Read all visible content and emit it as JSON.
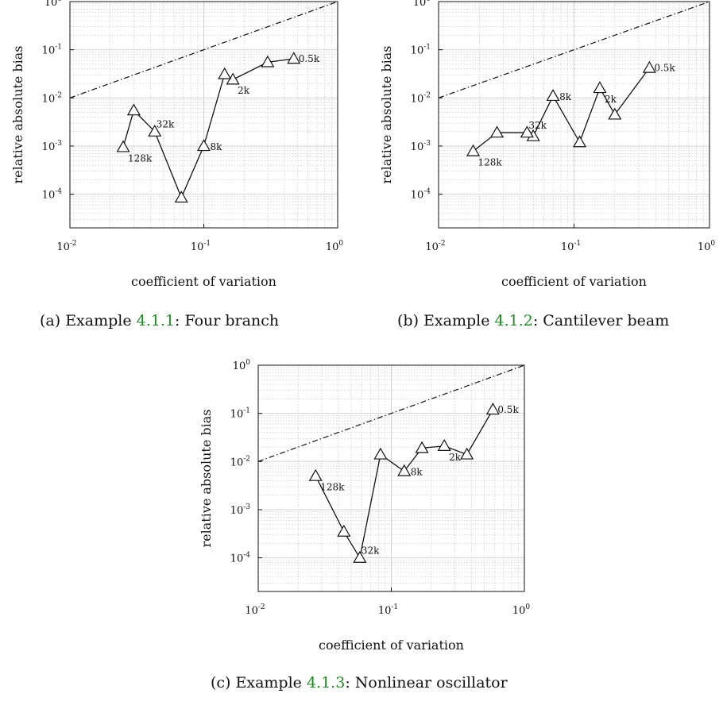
{
  "figure": {
    "captions": [
      {
        "prefix": "(a) Example ",
        "ref": "4.1.1",
        "suffix": ": Four branch"
      },
      {
        "prefix": "(b) Example ",
        "ref": "4.1.2",
        "suffix": ": Cantilever beam"
      },
      {
        "prefix": "(c) Example ",
        "ref": "4.1.3",
        "suffix": ": Nonlinear oscillator"
      }
    ],
    "ref_color": "#1f8a1f"
  },
  "chart_data": [
    {
      "type": "line",
      "title": "",
      "xlabel": "coefficient of variation",
      "ylabel": "relative absolute bias",
      "xscale": "log",
      "yscale": "log",
      "xlim": [
        0.01,
        1
      ],
      "ylim": [
        2e-05,
        1
      ],
      "xticks": [
        {
          "v": 0.01,
          "e": "-2"
        },
        {
          "v": 0.1,
          "e": "-1"
        },
        {
          "v": 1,
          "e": "0"
        }
      ],
      "yticks": [
        {
          "v": 0.0001,
          "e": "-4"
        },
        {
          "v": 0.001,
          "e": "-3"
        },
        {
          "v": 0.01,
          "e": "-2"
        },
        {
          "v": 0.1,
          "e": "-1"
        },
        {
          "v": 1,
          "e": "0"
        }
      ],
      "grid": true,
      "reference_line": {
        "style": "dash-dot",
        "x": [
          0.01,
          1
        ],
        "y": [
          0.01,
          1
        ]
      },
      "series": [
        {
          "marker": "triangle",
          "x": [
            0.47,
            0.3,
            0.165,
            0.143,
            0.1,
            0.068,
            0.043,
            0.03,
            0.025
          ],
          "y": [
            0.065,
            0.055,
            0.024,
            0.031,
            0.001,
            8.5e-05,
            0.002,
            0.0055,
            0.00095
          ],
          "labels": [
            "0.5k",
            "",
            "2k",
            "",
            "8k",
            "",
            "32k",
            "",
            "128k"
          ]
        }
      ]
    },
    {
      "type": "line",
      "title": "",
      "xlabel": "coefficient of variation",
      "ylabel": "relative absolute bias",
      "xscale": "log",
      "yscale": "log",
      "xlim": [
        0.01,
        1
      ],
      "ylim": [
        2e-05,
        1
      ],
      "xticks": [
        {
          "v": 0.01,
          "e": "-2"
        },
        {
          "v": 0.1,
          "e": "-1"
        },
        {
          "v": 1,
          "e": "0"
        }
      ],
      "yticks": [
        {
          "v": 0.0001,
          "e": "-4"
        },
        {
          "v": 0.001,
          "e": "-3"
        },
        {
          "v": 0.01,
          "e": "-2"
        },
        {
          "v": 0.1,
          "e": "-1"
        },
        {
          "v": 1,
          "e": "0"
        }
      ],
      "grid": true,
      "reference_line": {
        "style": "dash-dot",
        "x": [
          0.01,
          1
        ],
        "y": [
          0.01,
          1
        ]
      },
      "series": [
        {
          "marker": "triangle",
          "x": [
            0.36,
            0.2,
            0.155,
            0.11,
            0.07,
            0.05,
            0.045,
            0.027,
            0.018
          ],
          "y": [
            0.042,
            0.0045,
            0.016,
            0.0012,
            0.011,
            0.0016,
            0.0019,
            0.0019,
            0.00078
          ],
          "labels": [
            "0.5k",
            "",
            "2k",
            "",
            "8k",
            "",
            "32k",
            "",
            "128k"
          ]
        }
      ]
    },
    {
      "type": "line",
      "title": "",
      "xlabel": "coefficient of variation",
      "ylabel": "relative absolute bias",
      "xscale": "log",
      "yscale": "log",
      "xlim": [
        0.01,
        1
      ],
      "ylim": [
        2e-05,
        1
      ],
      "xticks": [
        {
          "v": 0.01,
          "e": "-2"
        },
        {
          "v": 0.1,
          "e": "-1"
        },
        {
          "v": 1,
          "e": "0"
        }
      ],
      "yticks": [
        {
          "v": 0.0001,
          "e": "-4"
        },
        {
          "v": 0.001,
          "e": "-3"
        },
        {
          "v": 0.01,
          "e": "-2"
        },
        {
          "v": 0.1,
          "e": "-1"
        },
        {
          "v": 1,
          "e": "0"
        }
      ],
      "grid": true,
      "reference_line": {
        "style": "dash-dot",
        "x": [
          0.01,
          1
        ],
        "y": [
          0.01,
          1
        ]
      },
      "series": [
        {
          "marker": "triangle",
          "x": [
            0.58,
            0.37,
            0.25,
            0.17,
            0.125,
            0.083,
            0.058,
            0.044,
            0.027
          ],
          "y": [
            0.12,
            0.014,
            0.021,
            0.019,
            0.0063,
            0.014,
            0.0001,
            0.00035,
            0.005
          ],
          "labels": [
            "0.5k",
            "",
            "2k",
            "",
            "8k",
            "",
            "32k",
            "",
            "128k"
          ]
        }
      ]
    }
  ]
}
